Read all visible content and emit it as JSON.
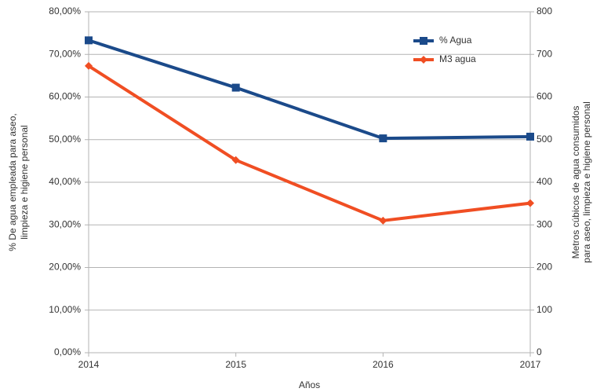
{
  "chart_data": {
    "type": "line",
    "x_label": "Años",
    "y_label": [
      "% De agua empleada para aseo,",
      "limpieza e higiene personal"
    ],
    "y2_label": [
      "Metros cúbicos de agua consumidos",
      "para aseo, limpieza e higiene personal"
    ],
    "x": [
      2014,
      2015,
      2016,
      2017
    ],
    "xlim": [
      2014,
      2017
    ],
    "xticks": [
      2014,
      2015,
      2016,
      2017
    ],
    "ylim": [
      0,
      80
    ],
    "yticks": [
      {
        "value": 0,
        "label": "0,00%"
      },
      {
        "value": 10,
        "label": "10,00%"
      },
      {
        "value": 20,
        "label": "20,00%"
      },
      {
        "value": 30,
        "label": "30,00%"
      },
      {
        "value": 40,
        "label": "40,00%"
      },
      {
        "value": 50,
        "label": "50,00%"
      },
      {
        "value": 60,
        "label": "60,00%"
      },
      {
        "value": 70,
        "label": "70,00%"
      },
      {
        "value": 80,
        "label": "80,00%"
      }
    ],
    "y2lim": [
      0,
      800
    ],
    "y2ticks": [
      0,
      100,
      200,
      300,
      400,
      500,
      600,
      700,
      800
    ],
    "grid": true,
    "legend": "top-right",
    "series": [
      {
        "name": "% Agua",
        "color": "#1b4a8a",
        "marker": "square",
        "values": [
          73.3,
          62.2,
          50.3,
          50.7
        ]
      },
      {
        "name": "M3 agua",
        "color": "#f04e23",
        "marker": "diamond",
        "axis": "y2",
        "values": [
          673,
          452,
          310,
          351
        ]
      }
    ]
  }
}
